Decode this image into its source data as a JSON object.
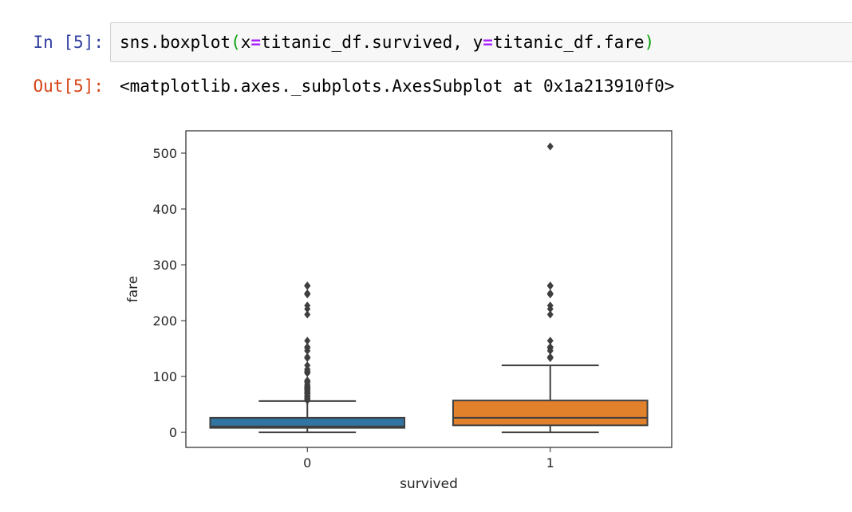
{
  "cells": [
    {
      "in_prompt": "In [5]:",
      "code": {
        "fn": "sns.boxplot",
        "open_paren": "(",
        "arg1_name": "x",
        "op1": "=",
        "arg1_val": "titanic_df.survived, ",
        "arg2_name": "y",
        "op2": "=",
        "arg2_val": "titanic_df.fare",
        "close_paren": ")"
      },
      "out_prompt": "Out[5]:",
      "output_text": "<matplotlib.axes._subplots.AxesSubplot at 0x1a213910f0>"
    }
  ],
  "colors": {
    "in_prompt": "#303f9f",
    "out_prompt": "#d84315",
    "paren": "#0aa10a",
    "operator": "#aa22ff",
    "box_survived_0": "#3274a1",
    "box_survived_1": "#e1812c",
    "box_edge": "#3f3f3f"
  },
  "chart_data": {
    "type": "box",
    "xlabel": "survived",
    "ylabel": "fare",
    "categories": [
      "0",
      "1"
    ],
    "ylim": [
      -27,
      540
    ],
    "yticks": [
      0,
      100,
      200,
      300,
      400,
      500
    ],
    "grid": false,
    "legend": "none",
    "boxes": [
      {
        "category": "0",
        "whisker_low": 0,
        "q1": 7.9,
        "median": 10.5,
        "q3": 26,
        "whisker_high": 56,
        "outliers": [
          57,
          59,
          61,
          63,
          65,
          66,
          69,
          70,
          71,
          73,
          75,
          77,
          78,
          79,
          80,
          82,
          83,
          86,
          90,
          91,
          93,
          106,
          108,
          110,
          113,
          120,
          133,
          135,
          146,
          151,
          153,
          164,
          211,
          221,
          227,
          247,
          249,
          262,
          263
        ]
      },
      {
        "category": "1",
        "whisker_low": 0,
        "q1": 12.5,
        "median": 26,
        "q3": 57,
        "whisker_high": 120,
        "outliers": [
          133,
          135,
          146,
          151,
          153,
          164,
          211,
          221,
          227,
          247,
          249,
          262,
          263,
          512
        ]
      }
    ]
  }
}
